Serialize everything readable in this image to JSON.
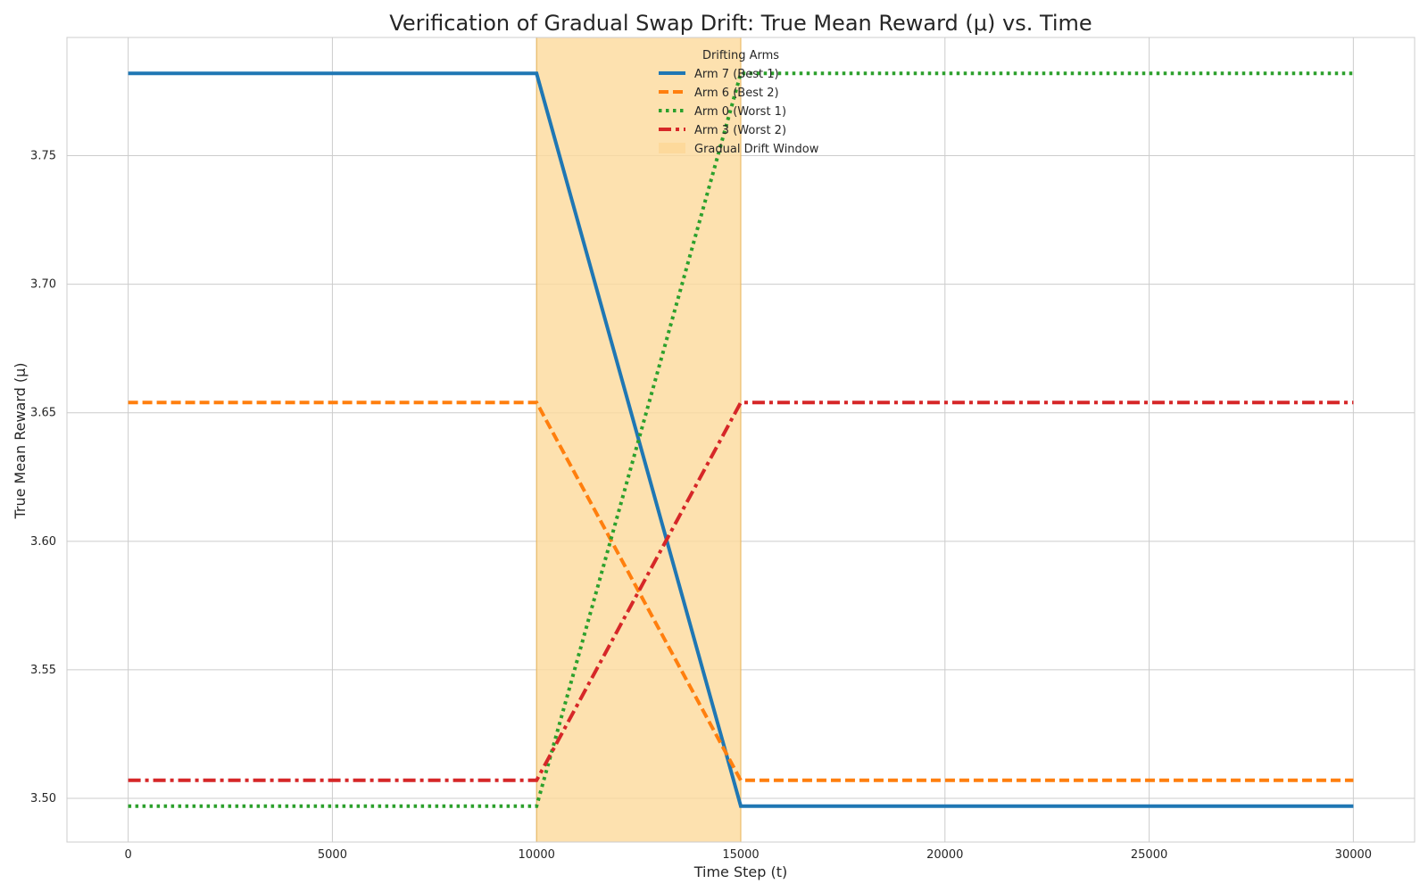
{
  "chart_data": {
    "type": "line",
    "title": "Verification of Gradual Swap Drift: True Mean Reward (μ) vs. Time",
    "xlabel": "Time Step (t)",
    "ylabel": "True Mean Reward (μ)",
    "xlim": [
      -1500,
      31500
    ],
    "ylim": [
      3.483,
      3.796
    ],
    "x_ticks": [
      0,
      5000,
      10000,
      15000,
      20000,
      25000,
      30000
    ],
    "x_tick_labels": [
      "0",
      "5000",
      "10000",
      "15000",
      "20000",
      "25000",
      "30000"
    ],
    "y_ticks": [
      3.5,
      3.55,
      3.6,
      3.65,
      3.7,
      3.75
    ],
    "y_tick_labels": [
      "3.50",
      "3.55",
      "3.60",
      "3.65",
      "3.70",
      "3.75"
    ],
    "grid": true,
    "legend": {
      "title": "Drifting Arms",
      "placement": "top-center"
    },
    "drift_window": {
      "label": "Gradual Drift Window",
      "x_start": 10000,
      "x_end": 15000,
      "color": "#fdd99b"
    },
    "series": [
      {
        "name": "Arm 7 (Best 1)",
        "color": "#1f77b4",
        "style": "solid",
        "x": [
          0,
          10000,
          15000,
          30000
        ],
        "y": [
          3.782,
          3.782,
          3.497,
          3.497
        ]
      },
      {
        "name": "Arm 6 (Best 2)",
        "color": "#ff7f0e",
        "style": "dashed",
        "x": [
          0,
          10000,
          15000,
          30000
        ],
        "y": [
          3.654,
          3.654,
          3.507,
          3.507
        ]
      },
      {
        "name": "Arm 0 (Worst 1)",
        "color": "#2ca02c",
        "style": "dotted",
        "x": [
          0,
          10000,
          15000,
          30000
        ],
        "y": [
          3.497,
          3.497,
          3.782,
          3.782
        ]
      },
      {
        "name": "Arm 3 (Worst 2)",
        "color": "#d62728",
        "style": "dashdot",
        "x": [
          0,
          10000,
          15000,
          30000
        ],
        "y": [
          3.507,
          3.507,
          3.654,
          3.654
        ]
      }
    ]
  }
}
